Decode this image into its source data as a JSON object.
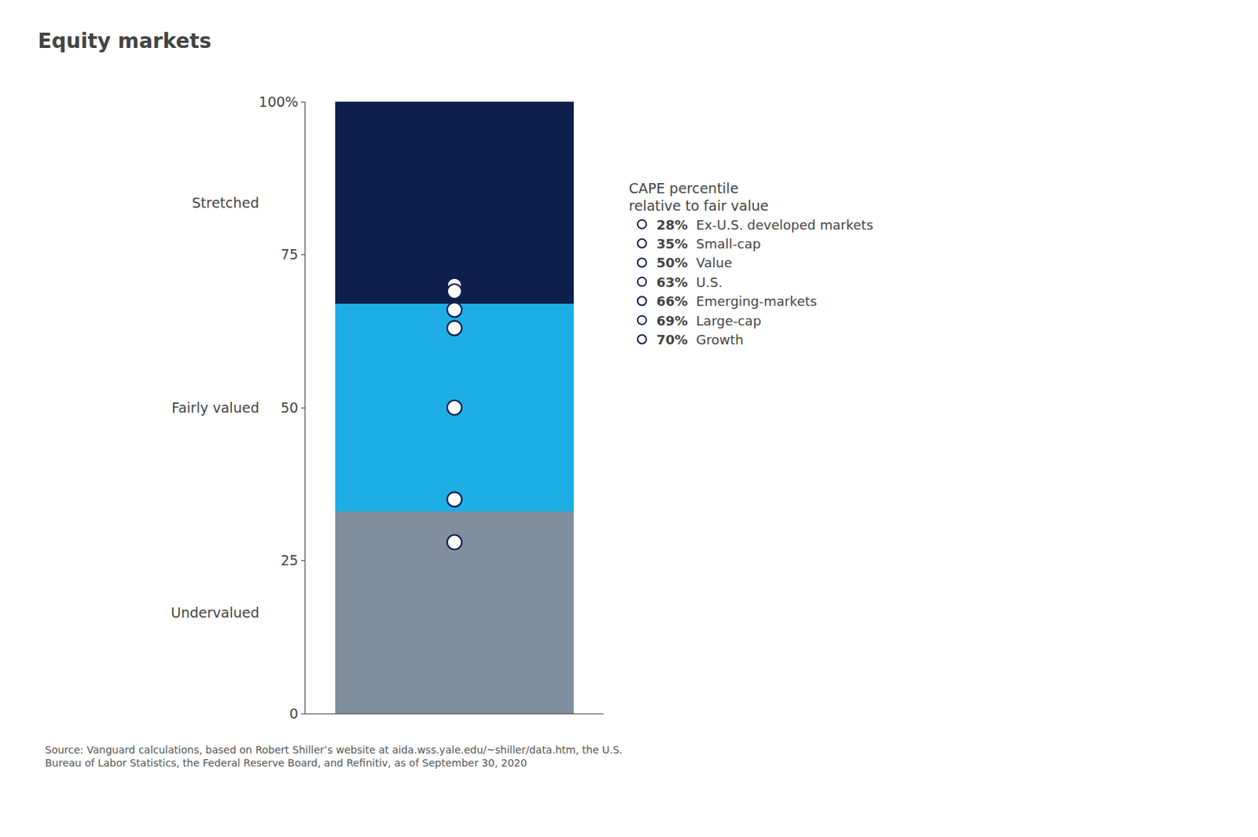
{
  "chart_data": {
    "type": "bar",
    "title": "Equity markets",
    "stacked": true,
    "categories": [
      null
    ],
    "series": [
      {
        "name": "Undervalued",
        "color": "#7f8f9f",
        "values": [
          33
        ]
      },
      {
        "name": "Fairly valued",
        "color": "#1eaee6",
        "values": [
          34
        ]
      },
      {
        "name": "Stretched",
        "color": "#0d1f4c",
        "values": [
          33
        ]
      },
      {
        "name": "Growth",
        "type": "scatter",
        "marker": "circle",
        "color": "white",
        "values": [
          70
        ],
        "value_labels": [
          "70%"
        ]
      },
      {
        "name": "Large-cap",
        "type": "scatter",
        "marker": "circle",
        "color": "white",
        "values": [
          69
        ],
        "value_labels": [
          "69%"
        ]
      },
      {
        "name": "Emerging-markets",
        "type": "scatter",
        "marker": "circle",
        "color": "white",
        "values": [
          66
        ],
        "value_labels": [
          "66%"
        ]
      },
      {
        "name": "U.S.",
        "type": "scatter",
        "marker": "circle",
        "color": "white",
        "values": [
          63
        ],
        "value_labels": [
          "63%"
        ]
      },
      {
        "name": "Value",
        "type": "scatter",
        "marker": "circle",
        "color": "white",
        "values": [
          50
        ],
        "value_labels": [
          "50%"
        ]
      },
      {
        "name": "Small-cap",
        "type": "scatter",
        "marker": "circle",
        "color": "white",
        "values": [
          35
        ],
        "value_labels": [
          "35%"
        ]
      },
      {
        "name": "Ex-U.S. developed markets",
        "type": "scatter",
        "marker": "circle",
        "color": "white",
        "values": [
          28
        ],
        "value_labels": [
          "28%"
        ]
      }
    ],
    "ylim": [
      0,
      100
    ],
    "yticks": [
      0,
      25,
      50,
      75,
      {
        "value": 100,
        "label": "100%"
      }
    ],
    "grid": false,
    "tick_labels": "y",
    "legend": "right",
    "legend_title": "CAPE percentile\nrelative to fair value",
    "annotations": [
      "Source: Vanguard calculations, based on Robert Shiller’s website at aida.wss.yale.edu/~shiller/data.htm, the U.S.\nBureau of Labor Statistics, the Federal Reserve Board, and Refinitiv, as of September 30, 2020"
    ]
  }
}
